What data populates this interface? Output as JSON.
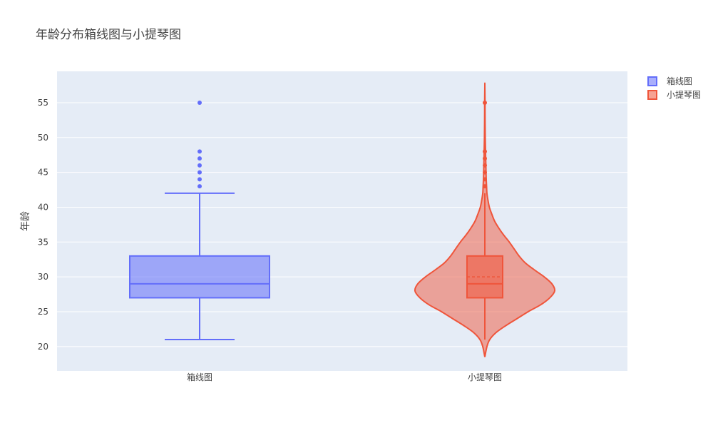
{
  "title": "年龄分布箱线图与小提琴图",
  "chart_data": {
    "type": "box_violin",
    "title": "年龄分布箱线图与小提琴图",
    "ylabel": "年龄",
    "xlabel": "",
    "categories": [
      "箱线图",
      "小提琴图"
    ],
    "ylim": [
      16.5,
      59.5
    ],
    "yticks": [
      20,
      25,
      30,
      35,
      40,
      45,
      50,
      55
    ],
    "grid": true,
    "legend_position": "top-right",
    "series": [
      {
        "name": "箱线图",
        "kind": "box",
        "color": "#636efa",
        "min": 21,
        "q1": 27,
        "median": 29,
        "q3": 33,
        "upper_fence": 42,
        "outliers": [
          43,
          44,
          45,
          46,
          47,
          48,
          55
        ]
      },
      {
        "name": "小提琴图",
        "kind": "violin",
        "color": "#ef553b",
        "min": 21,
        "q1": 27,
        "median": 29,
        "mean": 30,
        "q3": 33,
        "upper_fence": 42,
        "outliers": [
          43,
          44,
          45,
          46,
          47,
          48,
          55
        ],
        "kde_range": [
          18.5,
          57.5
        ],
        "density": [
          [
            18.5,
            0.0
          ],
          [
            20,
            0.03
          ],
          [
            21,
            0.07
          ],
          [
            22,
            0.16
          ],
          [
            23,
            0.3
          ],
          [
            24,
            0.46
          ],
          [
            25,
            0.62
          ],
          [
            26,
            0.8
          ],
          [
            27,
            0.93
          ],
          [
            28,
            1.0
          ],
          [
            29,
            0.96
          ],
          [
            30,
            0.85
          ],
          [
            31,
            0.71
          ],
          [
            32,
            0.58
          ],
          [
            33,
            0.49
          ],
          [
            34,
            0.42
          ],
          [
            35,
            0.35
          ],
          [
            36,
            0.27
          ],
          [
            37,
            0.2
          ],
          [
            38,
            0.14
          ],
          [
            39,
            0.1
          ],
          [
            40,
            0.065
          ],
          [
            41,
            0.045
          ],
          [
            42,
            0.03
          ],
          [
            43,
            0.025
          ],
          [
            44,
            0.02
          ],
          [
            45,
            0.017
          ],
          [
            46,
            0.015
          ],
          [
            47,
            0.012
          ],
          [
            48,
            0.01
          ],
          [
            50,
            0.006
          ],
          [
            52,
            0.004
          ],
          [
            54,
            0.003
          ],
          [
            55,
            0.003
          ],
          [
            57.5,
            0.0
          ]
        ]
      }
    ]
  }
}
